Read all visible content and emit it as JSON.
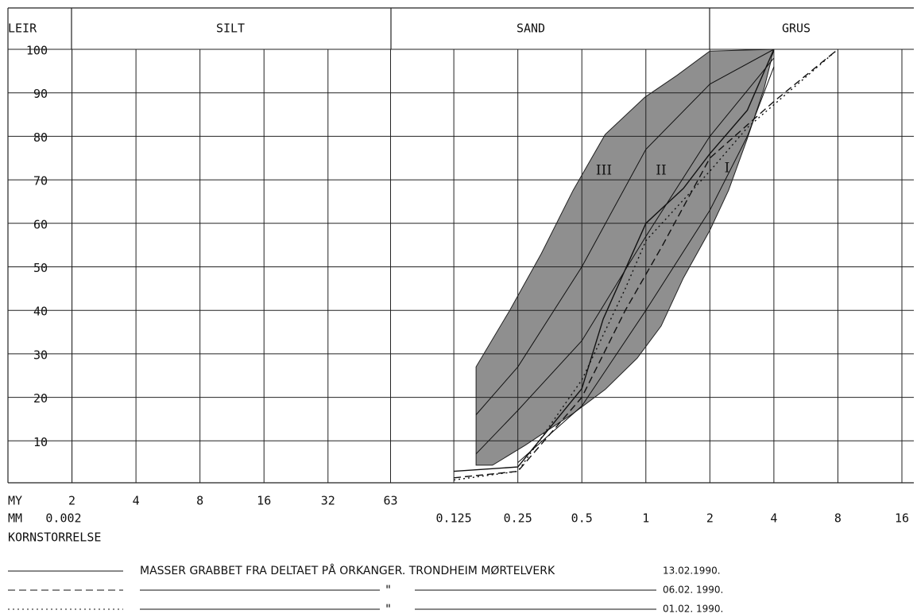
{
  "chart_data": {
    "type": "line",
    "x_scale": "log",
    "xlim": [
      0.001,
      16
    ],
    "ylim": [
      0,
      100
    ],
    "xticks": [
      0.002,
      0.125,
      0.25,
      0.5,
      1,
      2,
      4,
      8,
      16
    ],
    "my_ticks": [
      2,
      4,
      8,
      16,
      32,
      63
    ],
    "yticks": [
      10,
      20,
      30,
      40,
      50,
      60,
      70,
      80,
      90,
      100
    ],
    "grid": true,
    "fractions": [
      "LEIR",
      "SILT",
      "SAND",
      "GRUS"
    ],
    "my_label": "MY",
    "mm_label": "MM",
    "xlabel": "KORNSTORRELSE",
    "zone": {
      "color": "#8f8f8f",
      "x": [
        0.159,
        0.159,
        0.229,
        0.322,
        0.455,
        0.643,
        0.99,
        1.4,
        2.0,
        4.0,
        3.6,
        3.0,
        2.45,
        2.0,
        1.5,
        1.18,
        0.91,
        0.643,
        0.455,
        0.271,
        0.19
      ],
      "y": [
        4.4,
        27,
        40,
        53,
        67.6,
        80.4,
        89,
        94,
        99.6,
        100,
        91,
        79.5,
        67.6,
        58.4,
        47.4,
        36.4,
        29,
        21.8,
        16.3,
        9,
        4.4
      ]
    },
    "zone_curves": [
      {
        "name": "III",
        "x": [
          0.159,
          0.25,
          0.5,
          1,
          2,
          4
        ],
        "y": [
          16,
          27,
          50,
          77,
          92,
          100
        ]
      },
      {
        "name": "II",
        "x": [
          0.159,
          0.25,
          0.5,
          1,
          2,
          4
        ],
        "y": [
          7,
          17,
          33,
          57,
          80,
          98
        ]
      },
      {
        "name": "I",
        "x": [
          0.25,
          0.5,
          1,
          2,
          3,
          4
        ],
        "y": [
          5,
          18,
          40,
          63,
          80,
          96
        ]
      }
    ],
    "series": [
      {
        "name": "MASSER GRABBET FRA DELTAET PÅ ORKANGER. TRONDHEIM MØRTELVERK",
        "date": "13.02.1990.",
        "color": "#111111",
        "style": "solid",
        "x": [
          0.125,
          0.25,
          0.5,
          0.63,
          1,
          1.5,
          2,
          3,
          4
        ],
        "y": [
          3,
          4,
          22,
          38,
          60,
          68,
          76,
          86,
          100
        ]
      },
      {
        "name": "\"",
        "date": "06.02. 1990.",
        "color": "#111111",
        "style": "dashed",
        "x": [
          0.125,
          0.25,
          0.5,
          0.8,
          1.2,
          2,
          4,
          8
        ],
        "y": [
          1.5,
          3,
          20,
          40,
          55,
          75,
          88,
          100
        ]
      },
      {
        "name": "\"",
        "date": "01.02. 1990.",
        "color": "#111111",
        "style": "dotted",
        "x": [
          0.125,
          0.25,
          0.5,
          0.8,
          1,
          2,
          3,
          8
        ],
        "y": [
          1,
          3,
          24,
          45,
          56,
          72,
          82,
          100
        ]
      }
    ]
  }
}
